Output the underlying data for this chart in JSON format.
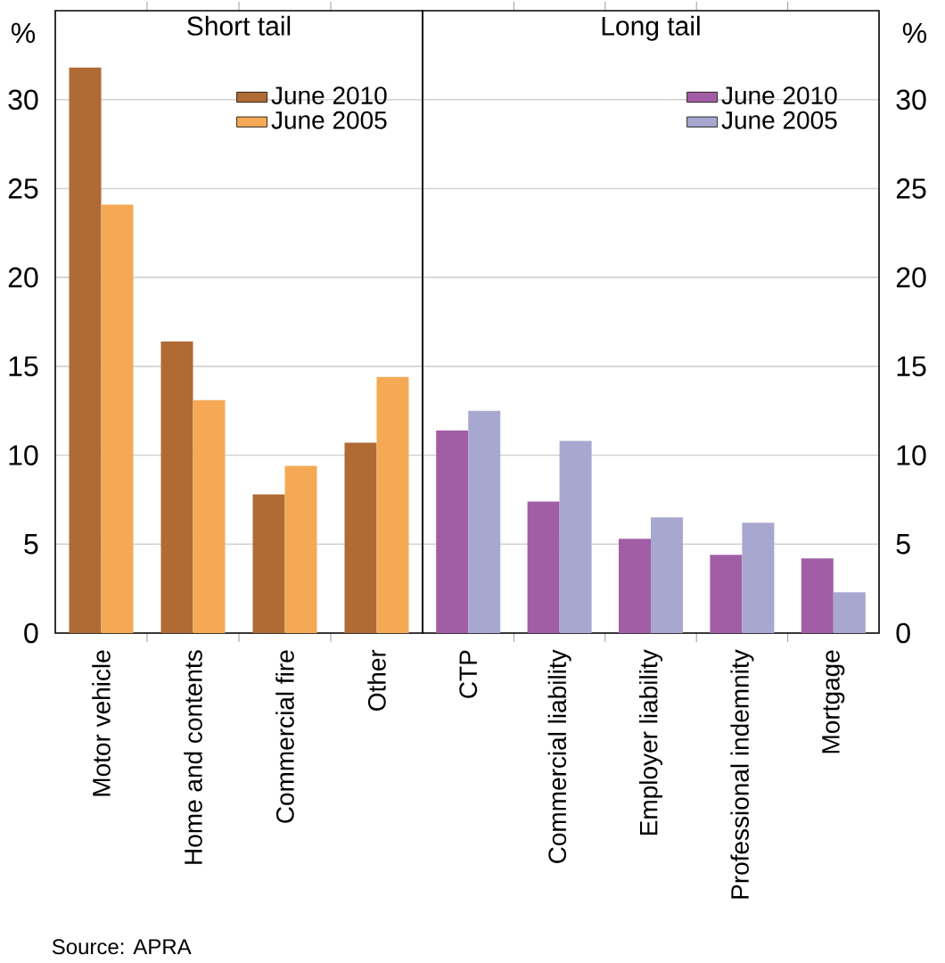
{
  "chart_data": [
    {
      "type": "bar",
      "title": "Short tail",
      "ylabel": "%",
      "categories": [
        "Motor vehicle",
        "Home and contents",
        "Commercial fire",
        "Other"
      ],
      "series": [
        {
          "name": "June 2010",
          "color": "#b06a33",
          "values": [
            31.8,
            16.4,
            7.8,
            10.7
          ]
        },
        {
          "name": "June 2005",
          "color": "#f5a955",
          "values": [
            24.1,
            13.1,
            9.4,
            14.4
          ]
        }
      ],
      "ylim": [
        0,
        35
      ],
      "yticks": [
        0,
        5,
        10,
        15,
        20,
        25,
        30
      ],
      "grid": "y",
      "legend": "top right",
      "annotations": [
        "Source: APRA"
      ]
    },
    {
      "type": "bar",
      "title": "Long tail",
      "ylabel": "%",
      "categories": [
        "CTP",
        "Commercial liability",
        "Employer liability",
        "Professional indemnity",
        "Mortgage"
      ],
      "series": [
        {
          "name": "June 2010",
          "color": "#a25ea4",
          "values": [
            11.4,
            7.4,
            5.3,
            4.4,
            4.2
          ]
        },
        {
          "name": "June 2005",
          "color": "#a7a7d0",
          "values": [
            12.5,
            10.8,
            6.5,
            6.2,
            2.3
          ]
        }
      ],
      "ylim": [
        0,
        35
      ],
      "yticks": [
        0,
        5,
        10,
        15,
        20,
        25,
        30
      ],
      "grid": "y",
      "legend": "top right"
    }
  ]
}
